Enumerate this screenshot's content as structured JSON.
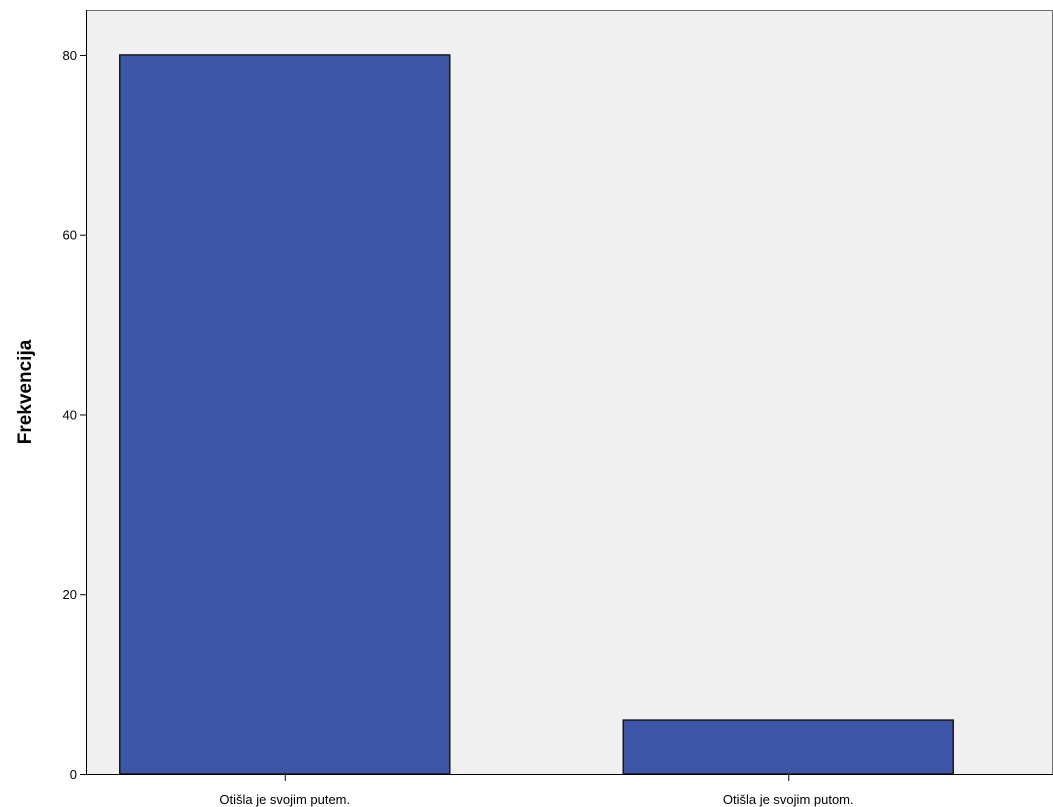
{
  "chart_data": {
    "type": "bar",
    "title": "",
    "xlabel": "",
    "ylabel": "Frekvencija",
    "categories": [
      "Otišla je svojim putem.",
      "Otišla je svojim putom."
    ],
    "values": [
      80,
      6
    ],
    "ylim": [
      0,
      85
    ],
    "yticks": [
      "0",
      "20",
      "40",
      "60",
      "80"
    ],
    "grid": false,
    "legend": "none",
    "colors": {
      "bar_fill": "#3d56a8",
      "bar_stroke": "#1a1a1a",
      "plot_background": "#f0f0f0",
      "axis": "#000000",
      "frame": "#6e6e6e"
    }
  }
}
